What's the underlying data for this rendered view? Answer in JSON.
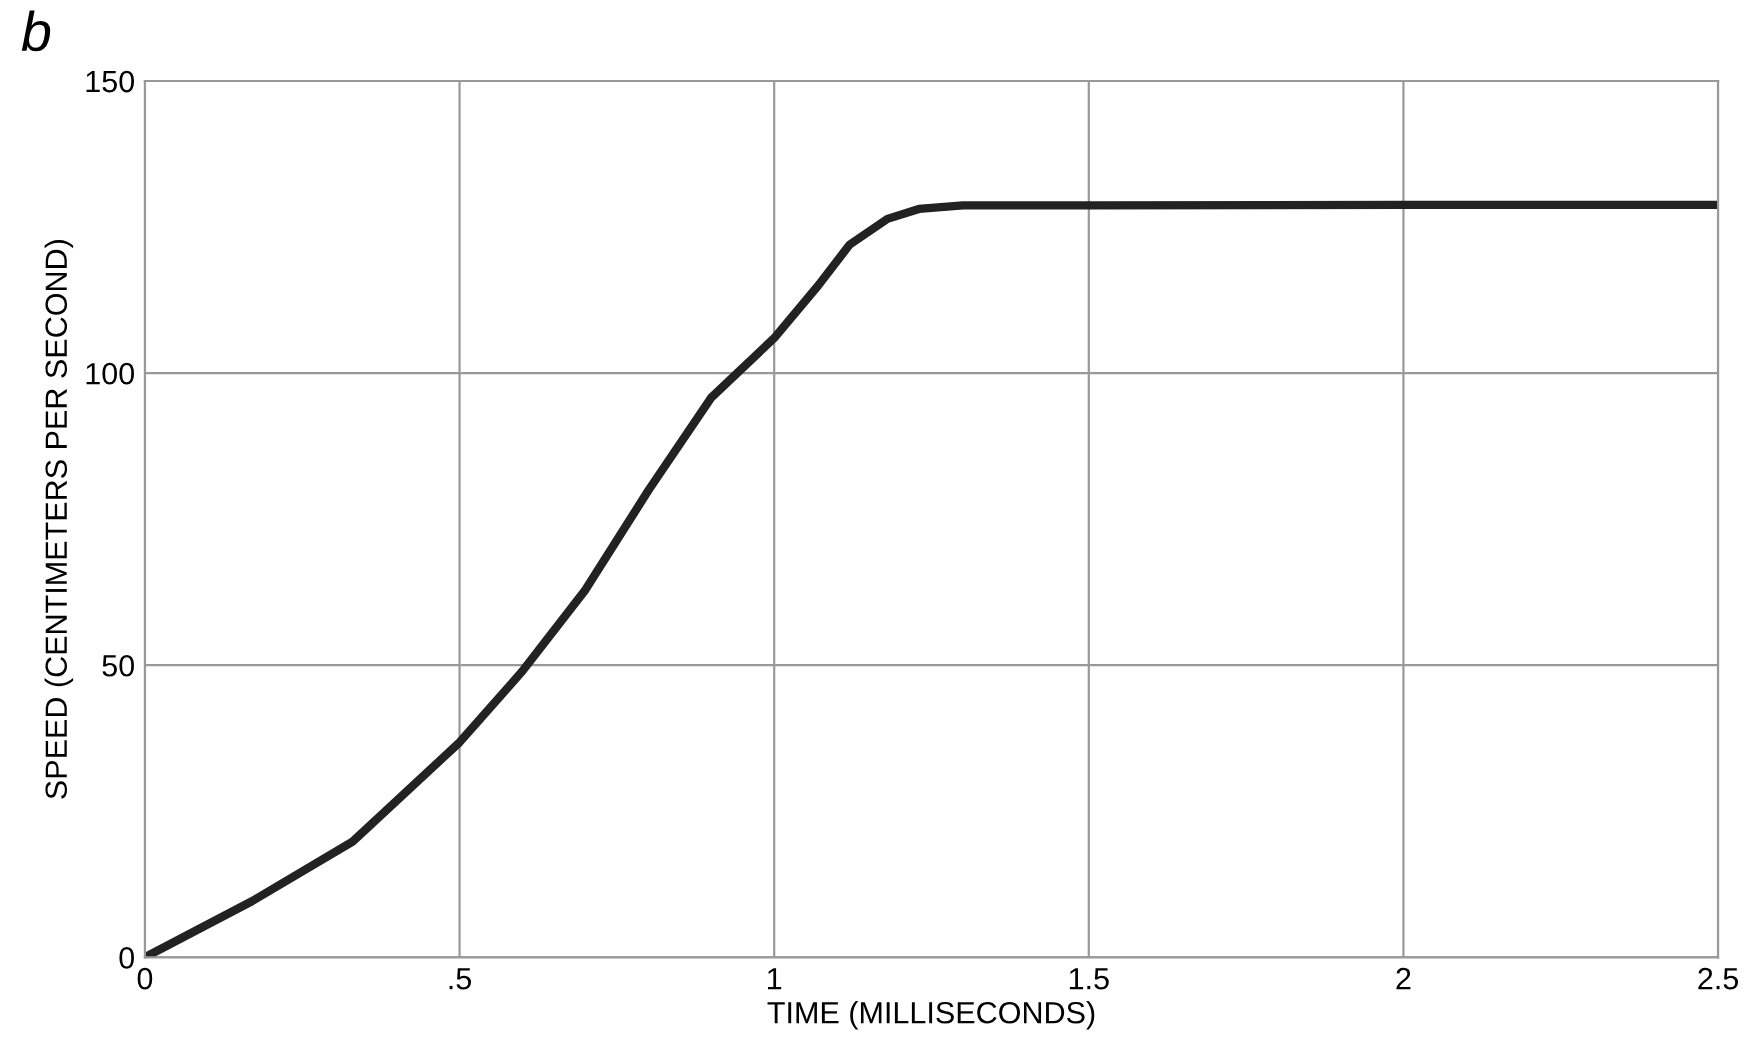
{
  "chart_data": {
    "type": "line",
    "title": "b",
    "xlabel": "TIME (MILLISECONDS)",
    "ylabel": "SPEED (CENTIMETERS PER SECOND)",
    "x": [
      0,
      0.17,
      0.33,
      0.5,
      0.6,
      0.7,
      0.8,
      0.9,
      1.0,
      1.07,
      1.12,
      1.18,
      1.23,
      1.3,
      1.5,
      2.0,
      2.5
    ],
    "series": [
      {
        "color": "#222222",
        "values": [
          0,
          9.6,
          19.8,
          36.8,
          49,
          62.9,
          79.9,
          95.8,
          106,
          115,
          122,
          126.4,
          128.1,
          128.7,
          128.7,
          128.8,
          128.8
        ]
      }
    ],
    "xlim": [
      0,
      2.5
    ],
    "xticks": [
      0,
      {
        "value": 0.5,
        "label": ".5"
      },
      1,
      1.5,
      2,
      2.5
    ],
    "ylim": [
      0,
      150
    ],
    "yticks": [
      0,
      50,
      100,
      150
    ],
    "grid": true,
    "marker": "none",
    "line_style": "solid"
  }
}
